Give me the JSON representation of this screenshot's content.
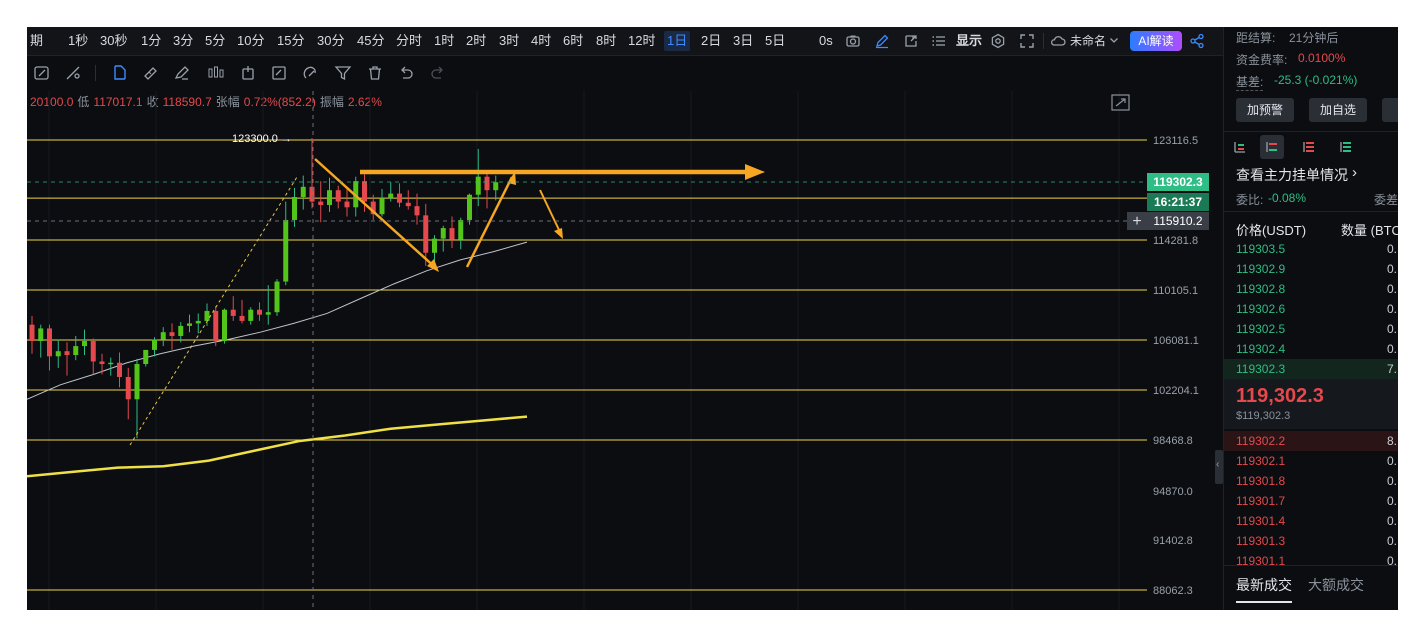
{
  "toolbar": {
    "timeframes": [
      "期",
      "1秒",
      "30秒",
      "1分",
      "3分",
      "5分",
      "10分",
      "15分",
      "30分",
      "45分",
      "分时",
      "1时",
      "2时",
      "3时",
      "4时",
      "6时",
      "8时",
      "12时",
      "1日",
      "2日",
      "3日",
      "5日"
    ],
    "active_timeframe": "1日",
    "zero_seconds": "0s",
    "display_label": "显示",
    "layout_name": "未命名",
    "ai_label": "AI解读",
    "icons": [
      "camera-icon",
      "pen-icon",
      "popout-icon",
      "menu-icon",
      "settings-icon",
      "fullscreen-icon",
      "cloud-icon",
      "share-icon"
    ]
  },
  "drawing_tools": [
    "cursor-icon",
    "crosshair-icon",
    "pencil-icon",
    "ruler-icon",
    "brush-icon",
    "candle-icon",
    "position-icon",
    "note-icon",
    "magnet-icon",
    "filter-icon",
    "trash-icon",
    "undo-icon",
    "redo-icon"
  ],
  "ohlc": {
    "high_partial": "20100.0",
    "low_label": "低",
    "low": "117017.1",
    "close_label": "收",
    "close": "118590.7",
    "change_label": "张幅",
    "change": "0.72%(852.2)",
    "amp_label": "振幅",
    "amp": "2.62%"
  },
  "chart_data": {
    "type": "candlestick",
    "price_axis": [
      "123116.5",
      "114281.8",
      "110105.1",
      "106081.1",
      "102204.1",
      "98468.8",
      "94870.0",
      "91402.8",
      "88062.3"
    ],
    "ylim": [
      86500,
      126000
    ],
    "current_price_label": "119302.3",
    "countdown_label": "16:21:37",
    "cursor_price_label": "115910.2",
    "high_annotation": "123300.0",
    "horizontal_levels": [
      123116.5,
      114281.8,
      110105.1,
      106081.1,
      102204.1,
      98468.8,
      88062.3,
      117900
    ],
    "candles": [
      {
        "o": 107300,
        "h": 108000,
        "c": 106000,
        "l": 105000
      },
      {
        "o": 106000,
        "h": 107300,
        "c": 107000,
        "l": 104700
      },
      {
        "o": 107000,
        "h": 107300,
        "c": 104800,
        "l": 103700
      },
      {
        "o": 104800,
        "h": 106100,
        "c": 105200,
        "l": 103900
      },
      {
        "o": 105200,
        "h": 105900,
        "c": 104900,
        "l": 103300
      },
      {
        "o": 104900,
        "h": 106400,
        "c": 105600,
        "l": 104500
      },
      {
        "o": 105600,
        "h": 106900,
        "c": 106000,
        "l": 104900
      },
      {
        "o": 106000,
        "h": 106200,
        "c": 104400,
        "l": 103400
      },
      {
        "o": 104400,
        "h": 105000,
        "c": 104200,
        "l": 103400
      },
      {
        "o": 104200,
        "h": 104700,
        "c": 104300,
        "l": 103300
      },
      {
        "o": 104300,
        "h": 105100,
        "c": 103200,
        "l": 102400
      },
      {
        "o": 103200,
        "h": 103900,
        "c": 101500,
        "l": 100000
      },
      {
        "o": 101500,
        "h": 104600,
        "c": 104200,
        "l": 98600
      },
      {
        "o": 104200,
        "h": 105300,
        "c": 105300,
        "l": 104000
      },
      {
        "o": 105300,
        "h": 106300,
        "c": 106100,
        "l": 104800
      },
      {
        "o": 106100,
        "h": 107100,
        "c": 106700,
        "l": 105600
      },
      {
        "o": 106700,
        "h": 107400,
        "c": 106400,
        "l": 105300
      },
      {
        "o": 106400,
        "h": 107500,
        "c": 107200,
        "l": 105900
      },
      {
        "o": 107200,
        "h": 108100,
        "c": 107400,
        "l": 106700
      },
      {
        "o": 107400,
        "h": 108200,
        "c": 107600,
        "l": 106600
      },
      {
        "o": 107600,
        "h": 109000,
        "c": 108400,
        "l": 107200
      },
      {
        "o": 108400,
        "h": 108800,
        "c": 106000,
        "l": 105600
      },
      {
        "o": 106000,
        "h": 108600,
        "c": 108500,
        "l": 105800
      },
      {
        "o": 108500,
        "h": 109600,
        "c": 108000,
        "l": 107600
      },
      {
        "o": 108000,
        "h": 109300,
        "c": 107600,
        "l": 107400
      },
      {
        "o": 107600,
        "h": 108700,
        "c": 108500,
        "l": 107300
      },
      {
        "o": 108500,
        "h": 109100,
        "c": 108100,
        "l": 107600
      },
      {
        "o": 108100,
        "h": 110500,
        "c": 108300,
        "l": 107300
      },
      {
        "o": 108300,
        "h": 111000,
        "c": 110800,
        "l": 108000
      },
      {
        "o": 110800,
        "h": 117600,
        "c": 116000,
        "l": 110500
      },
      {
        "o": 116000,
        "h": 118800,
        "c": 118000,
        "l": 115400
      },
      {
        "o": 118000,
        "h": 119900,
        "c": 118900,
        "l": 116900
      },
      {
        "o": 118900,
        "h": 123300,
        "c": 117600,
        "l": 117000
      },
      {
        "o": 117600,
        "h": 119400,
        "c": 117300,
        "l": 115800
      },
      {
        "o": 117300,
        "h": 119700,
        "c": 118600,
        "l": 116700
      },
      {
        "o": 118600,
        "h": 119000,
        "c": 117600,
        "l": 117000
      },
      {
        "o": 117600,
        "h": 118800,
        "c": 117100,
        "l": 116300
      },
      {
        "o": 117100,
        "h": 119800,
        "c": 119400,
        "l": 116300
      },
      {
        "o": 119400,
        "h": 120000,
        "c": 117600,
        "l": 116700
      },
      {
        "o": 117600,
        "h": 118200,
        "c": 116500,
        "l": 116000
      },
      {
        "o": 116500,
        "h": 118700,
        "c": 117900,
        "l": 116300
      },
      {
        "o": 117900,
        "h": 119300,
        "c": 118300,
        "l": 117600
      },
      {
        "o": 118300,
        "h": 119200,
        "c": 117500,
        "l": 117100
      },
      {
        "o": 117500,
        "h": 118600,
        "c": 117200,
        "l": 116900
      },
      {
        "o": 117200,
        "h": 118300,
        "c": 116400,
        "l": 115600
      },
      {
        "o": 116400,
        "h": 117400,
        "c": 113200,
        "l": 112100
      },
      {
        "o": 113200,
        "h": 114700,
        "c": 114400,
        "l": 112400
      },
      {
        "o": 114400,
        "h": 115500,
        "c": 115300,
        "l": 113300
      },
      {
        "o": 115300,
        "h": 116300,
        "c": 114300,
        "l": 113600
      },
      {
        "o": 114300,
        "h": 116200,
        "c": 116000,
        "l": 113500
      },
      {
        "o": 116000,
        "h": 118300,
        "c": 118200,
        "l": 115600
      },
      {
        "o": 118200,
        "h": 122300,
        "c": 119800,
        "l": 117200
      },
      {
        "o": 119800,
        "h": 120100,
        "c": 118600,
        "l": 117000
      },
      {
        "o": 118600,
        "h": 119900,
        "c": 119302,
        "l": 117700
      }
    ],
    "ma_short": [
      101500,
      102600,
      103400,
      104300,
      105000,
      105600,
      106100,
      106700,
      107400,
      108200,
      109400,
      110600,
      111700,
      112600,
      113300,
      114100
    ],
    "ma_long": [
      95900,
      96200,
      96500,
      96600,
      97000,
      97700,
      98400,
      98800,
      99300,
      99600,
      99900,
      100200
    ]
  },
  "panel": {
    "settle_label": "距结算:",
    "settle_value": "21分钟后",
    "funding_label": "资金费率:",
    "funding_value": "0.0100%",
    "basis_label": "基差:",
    "basis_value": "-25.3 (-0.021%)",
    "alert_btn": "加预警",
    "watch_btn": "加自选",
    "orders_link": "查看主力挂单情况",
    "ratio_label": "委比:",
    "ratio_value": "-0.08%",
    "diff_label": "委差",
    "price_header": "价格(USDT)",
    "qty_header": "数量 (BTC",
    "asks": [
      "119303.5",
      "119302.9",
      "119302.8",
      "119302.6",
      "119302.5",
      "119302.4",
      "119302.3"
    ],
    "ask_qty": [
      "0.",
      "0.",
      "0.",
      "0.",
      "0.",
      "0.",
      "7."
    ],
    "last_price": "119,302.3",
    "last_price_usd": "$119,302.3",
    "bids": [
      "119302.2",
      "119302.1",
      "119301.8",
      "119301.7",
      "119301.4",
      "119301.3",
      "119301.1"
    ],
    "bid_qty": [
      "8.",
      "0.",
      "0.",
      "0.",
      "0.",
      "0.",
      "0."
    ],
    "tab_latest": "最新成交",
    "tab_large": "大额成交",
    "colors": {
      "up": "#2ebd85",
      "down": "#e5484d",
      "accent": "#f5a623"
    }
  }
}
